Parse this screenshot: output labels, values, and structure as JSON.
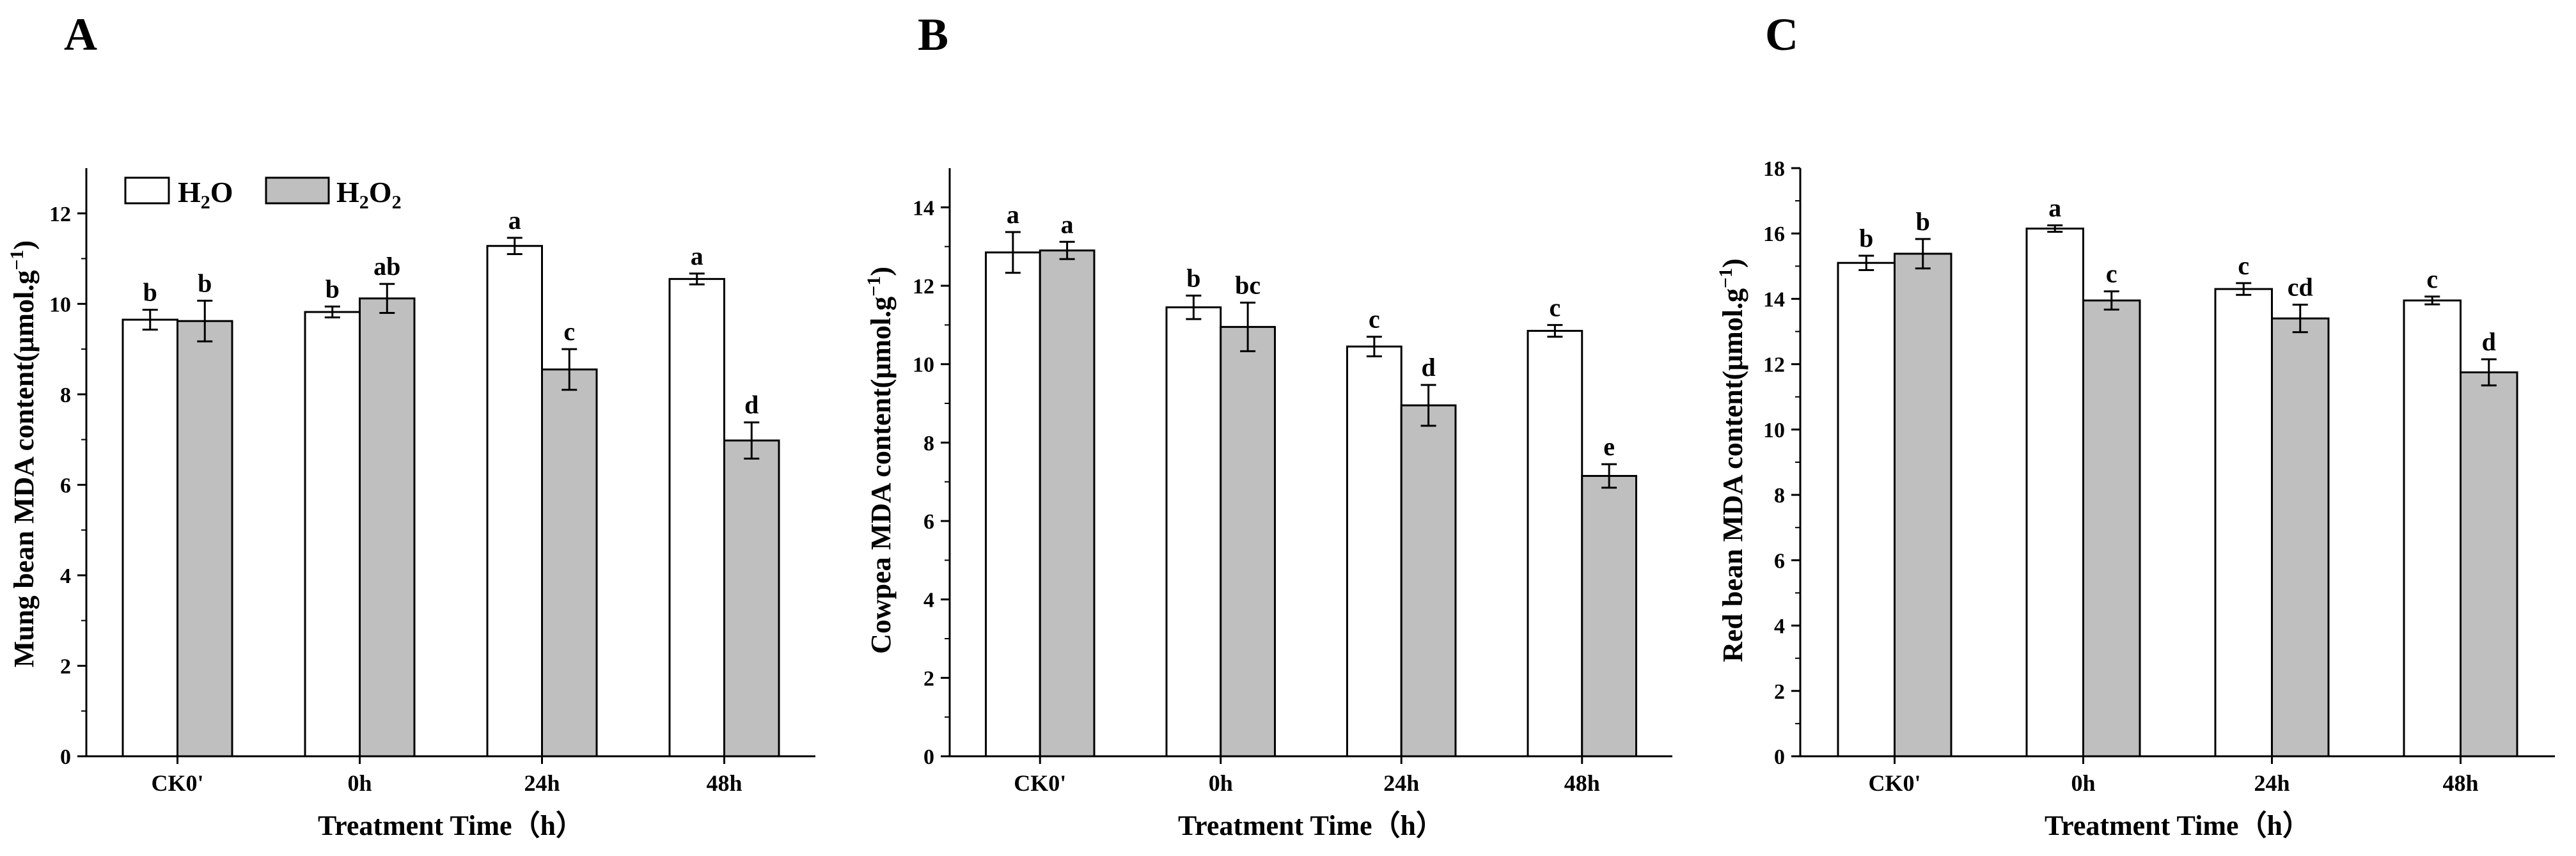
{
  "chart_data": [
    {
      "panel": "A",
      "type": "bar",
      "categories": [
        "CK0'",
        "0h",
        "24h",
        "48h"
      ],
      "series": [
        {
          "name": "H2O",
          "color": "#ffffff",
          "values": [
            9.65,
            9.82,
            11.28,
            10.55
          ],
          "errors": [
            0.22,
            0.12,
            0.18,
            0.12
          ],
          "labels": [
            "b",
            "b",
            "a",
            "a"
          ]
        },
        {
          "name": "H2O2",
          "color": "#bfbfbf",
          "values": [
            9.62,
            10.12,
            8.55,
            6.98
          ],
          "errors": [
            0.45,
            0.32,
            0.45,
            0.4
          ],
          "labels": [
            "b",
            "ab",
            "c",
            "d"
          ]
        }
      ],
      "title": "",
      "xlabel": "Treatment Time（h）",
      "ylabel": "Mung bean MDA content(μmol.g",
      "ylabel_sup": "−1",
      "ylabel_end": ")",
      "ylim": [
        0,
        13
      ],
      "yticks": [
        0,
        2,
        4,
        6,
        8,
        10,
        12
      ],
      "legend": {
        "position": "top-left",
        "items": [
          {
            "text": "H",
            "sub": "2",
            "text2": "O",
            "sub2": ""
          },
          {
            "text": "H",
            "sub": "2",
            "text2": "O",
            "sub2": "2"
          }
        ]
      }
    },
    {
      "panel": "B",
      "type": "bar",
      "categories": [
        "CK0'",
        "0h",
        "24h",
        "48h"
      ],
      "series": [
        {
          "name": "H2O",
          "color": "#ffffff",
          "values": [
            12.85,
            11.45,
            10.45,
            10.85
          ],
          "errors": [
            0.52,
            0.3,
            0.25,
            0.15
          ],
          "labels": [
            "a",
            "b",
            "c",
            "c"
          ]
        },
        {
          "name": "H2O2",
          "color": "#bfbfbf",
          "values": [
            12.9,
            10.95,
            8.95,
            7.15
          ],
          "errors": [
            0.22,
            0.62,
            0.52,
            0.3
          ],
          "labels": [
            "a",
            "bc",
            "d",
            "e"
          ]
        }
      ],
      "title": "",
      "xlabel": "Treatment Time（h）",
      "ylabel": "Cowpea MDA content(μmol.g",
      "ylabel_sup": "−1",
      "ylabel_end": ")",
      "ylim": [
        0,
        15
      ],
      "yticks": [
        0,
        2,
        4,
        6,
        8,
        10,
        12,
        14
      ]
    },
    {
      "panel": "C",
      "type": "bar",
      "categories": [
        "CK0'",
        "0h",
        "24h",
        "48h"
      ],
      "series": [
        {
          "name": "H2O",
          "color": "#ffffff",
          "values": [
            15.1,
            16.15,
            14.3,
            13.95
          ],
          "errors": [
            0.22,
            0.1,
            0.18,
            0.12
          ],
          "labels": [
            "b",
            "a",
            "c",
            "c"
          ]
        },
        {
          "name": "H2O2",
          "color": "#bfbfbf",
          "values": [
            15.38,
            13.95,
            13.4,
            11.75
          ],
          "errors": [
            0.45,
            0.28,
            0.42,
            0.4
          ],
          "labels": [
            "b",
            "c",
            "cd",
            "d"
          ]
        }
      ],
      "title": "",
      "xlabel": "Treatment Time（h）",
      "ylabel": "Red bean MDA content(μmol.g",
      "ylabel_sup": "−1",
      "ylabel_end": ")",
      "ylim": [
        0,
        18
      ],
      "yticks": [
        0,
        2,
        4,
        6,
        8,
        10,
        12,
        14,
        16,
        18
      ]
    }
  ]
}
